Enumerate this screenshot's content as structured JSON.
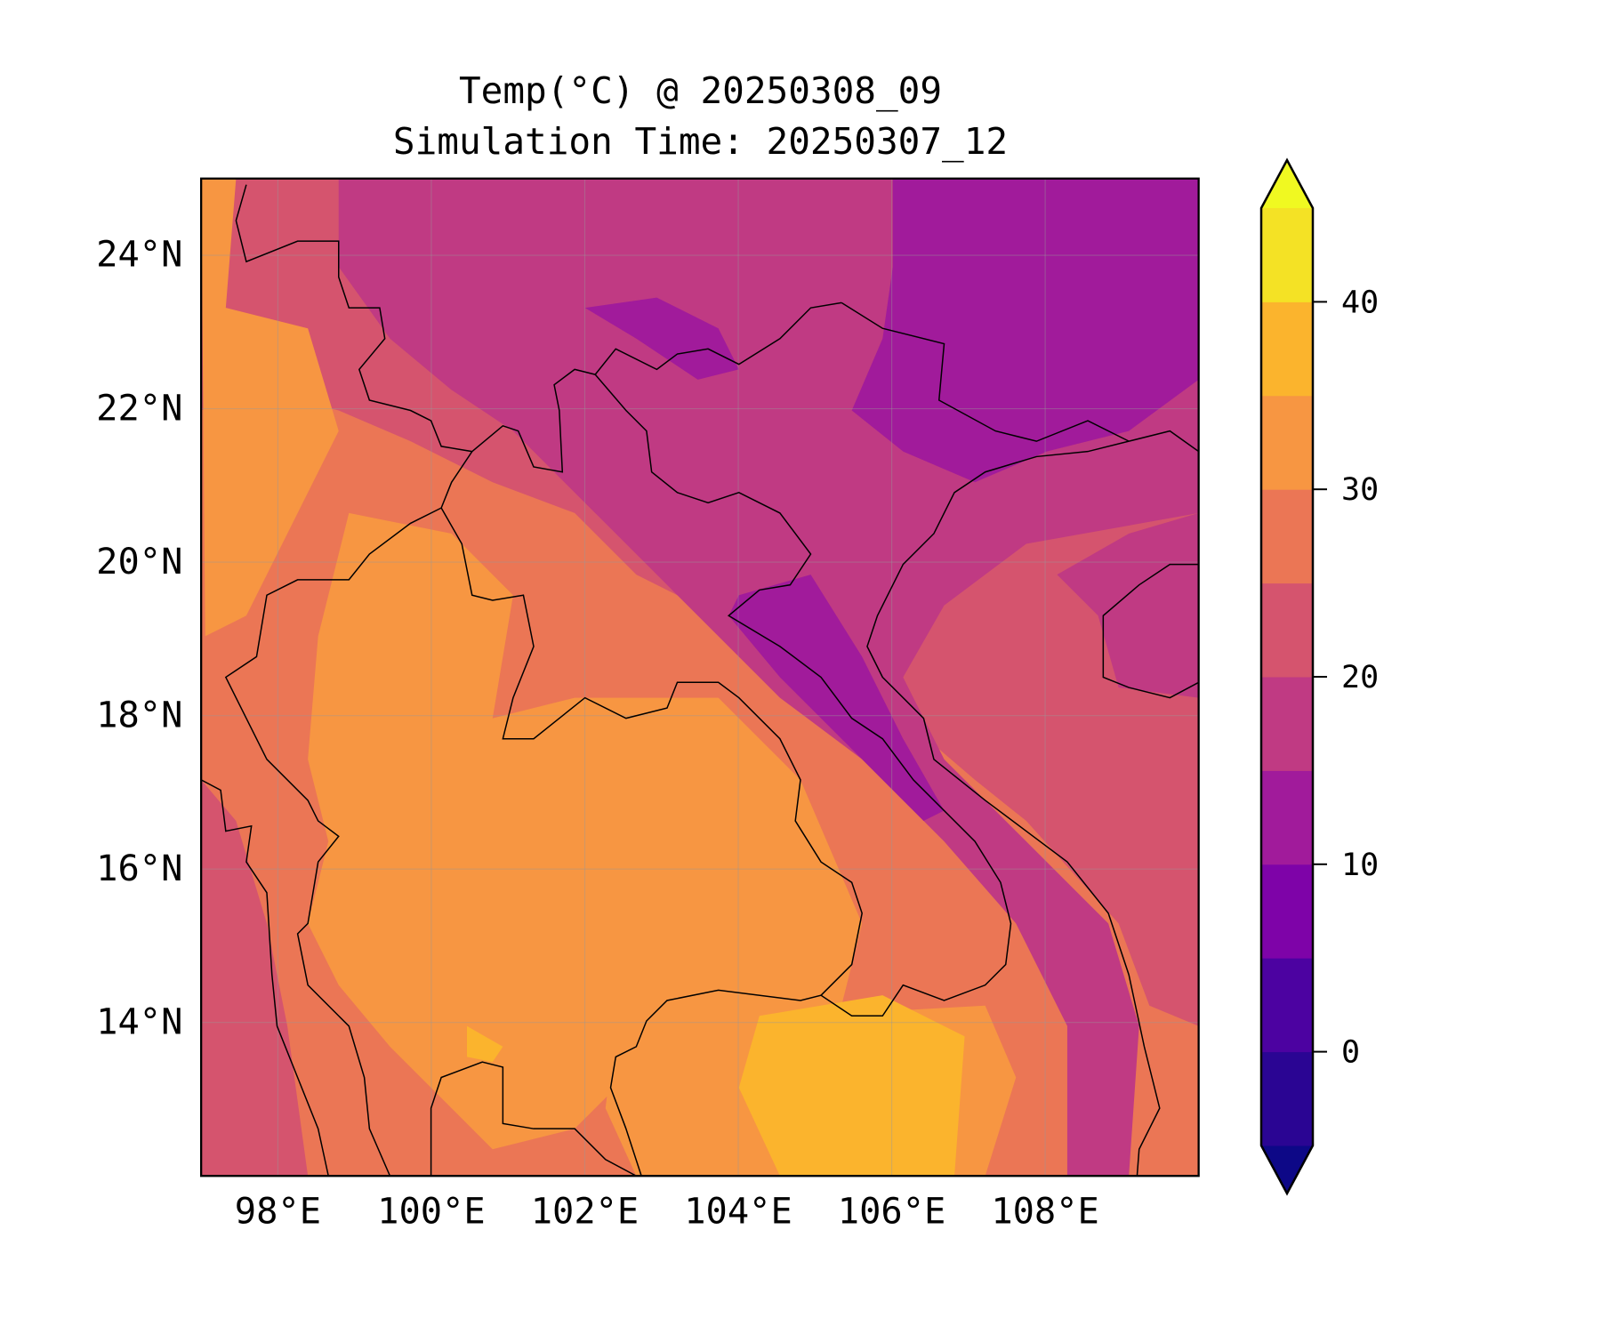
{
  "chart_data": {
    "type": "heatmap",
    "subtype": "filled-contour-map",
    "title": "Temp(°C) @ 20250308_09",
    "subtitle": "Simulation Time: 20250307_12",
    "xlabel": "",
    "ylabel": "",
    "xlim": [
      97,
      110
    ],
    "ylim": [
      12,
      25
    ],
    "x_ticks": [
      98,
      100,
      102,
      104,
      106,
      108
    ],
    "x_tick_labels": [
      "98°E",
      "100°E",
      "102°E",
      "104°E",
      "106°E",
      "108°E"
    ],
    "y_ticks": [
      24,
      22,
      20,
      18,
      16,
      14
    ],
    "y_tick_labels": [
      "24°N",
      "22°N",
      "20°N",
      "18°N",
      "16°N",
      "14°N"
    ],
    "grid": true,
    "colorbar": {
      "levels": [
        -5,
        0,
        5,
        10,
        15,
        20,
        25,
        30,
        35,
        40,
        45
      ],
      "extend": "both",
      "colors": [
        "#2a0593",
        "#4c02a1",
        "#7e03a8",
        "#a11b9b",
        "#c03a83",
        "#d5546e",
        "#eb7655",
        "#f79642",
        "#fbb42d",
        "#f4e225"
      ],
      "under_color": "#0d0887",
      "over_color": "#f0f921",
      "ticks": [
        0,
        10,
        20,
        30,
        40
      ],
      "tick_labels": [
        "0",
        "10",
        "20",
        "30",
        "40"
      ]
    }
  }
}
